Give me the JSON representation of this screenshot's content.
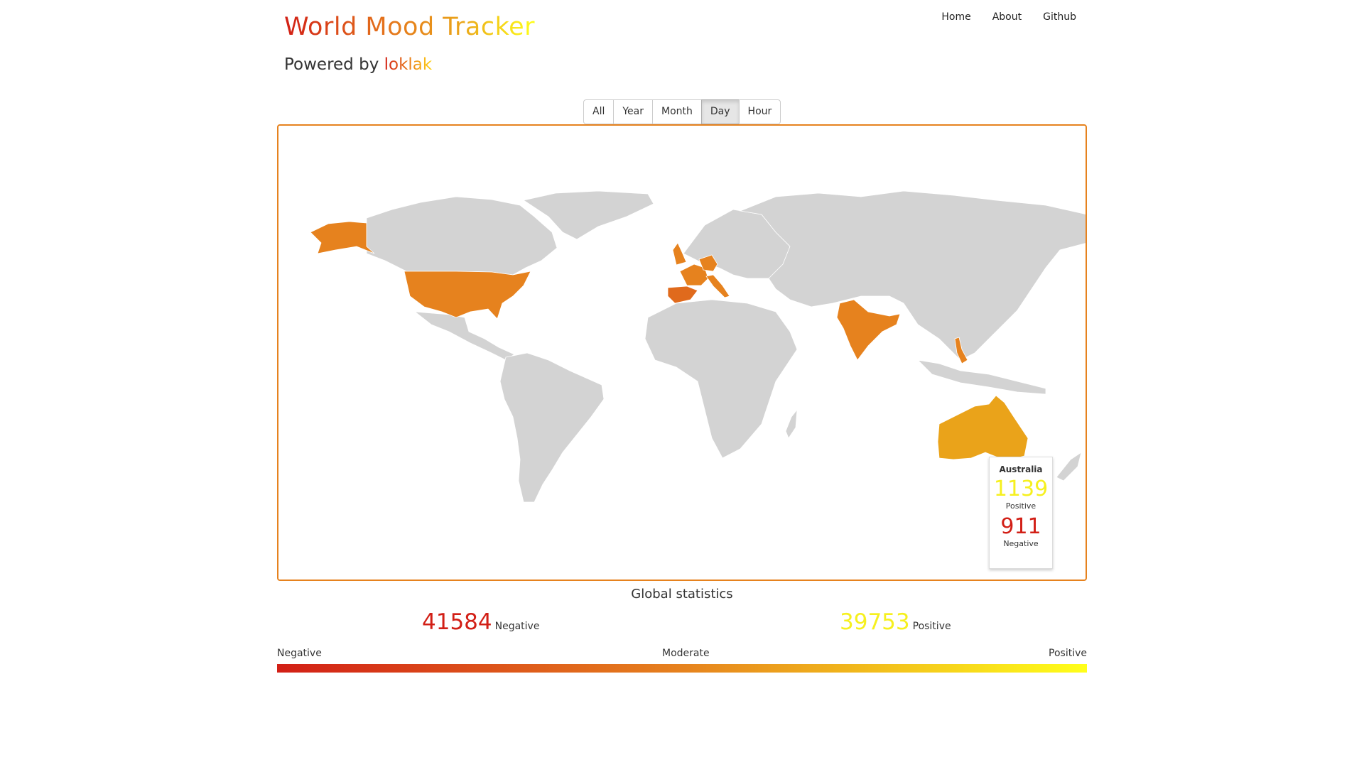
{
  "header": {
    "title": "World Mood Tracker",
    "powered_prefix": "Powered by",
    "powered_brand": "loklak"
  },
  "nav": [
    "Home",
    "About",
    "Github"
  ],
  "time_filters": {
    "options": [
      "All",
      "Year",
      "Month",
      "Day",
      "Hour"
    ],
    "selected": "Day"
  },
  "map": {
    "colors": {
      "no_data": "#d3d3d3",
      "moderate": "#e6821e",
      "slightly_positive": "#eaa31a",
      "slightly_negative": "#e06a1c"
    },
    "highlighted_countries": [
      "United States",
      "Alaska",
      "United Kingdom",
      "France",
      "Spain",
      "Germany",
      "Italy",
      "India",
      "Philippines",
      "Australia"
    ],
    "tooltip": {
      "country": "Australia",
      "positive": "1139",
      "positive_label": "Positive",
      "negative": "911",
      "negative_label": "Negative"
    }
  },
  "global": {
    "title": "Global statistics",
    "negative": "41584",
    "negative_label": "Negative",
    "positive": "39753",
    "positive_label": "Positive"
  },
  "legend": {
    "left": "Negative",
    "middle": "Moderate",
    "right": "Positive",
    "colors": [
      "#d21f16",
      "#e6821e",
      "#ffff1a"
    ]
  }
}
